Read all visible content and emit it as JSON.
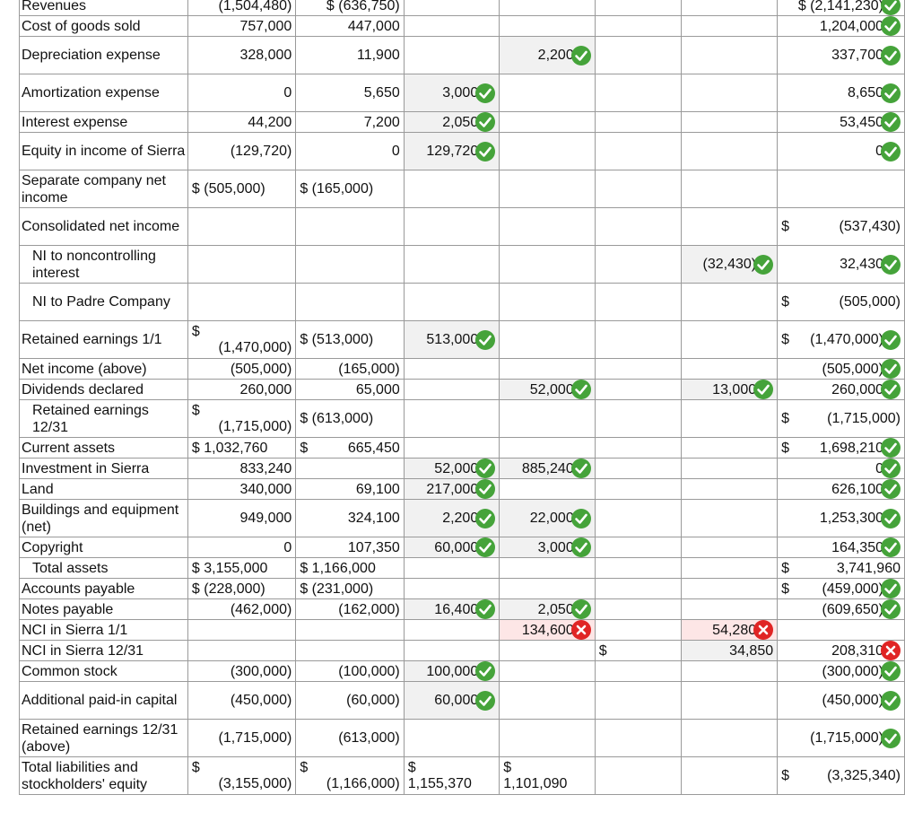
{
  "col_widths": [
    200,
    125,
    125,
    110,
    110,
    110,
    110,
    145
  ],
  "rows": [
    {
      "h": "h1",
      "label": "Revenues",
      "cells": [
        {
          "c": 1,
          "v": "(1,504,480)"
        },
        {
          "c": 2,
          "v": "$ (636,750)"
        },
        {
          "c": 7,
          "v": "$ (2,141,230)",
          "icon": "check"
        }
      ]
    },
    {
      "h": "h1",
      "label": "Cost of goods sold",
      "cells": [
        {
          "c": 1,
          "v": "757,000"
        },
        {
          "c": 2,
          "v": "447,000"
        },
        {
          "c": 7,
          "v": "1,204,000",
          "icon": "check"
        }
      ]
    },
    {
      "h": "h2",
      "label": "Depreciation expense",
      "cells": [
        {
          "c": 1,
          "v": "328,000"
        },
        {
          "c": 2,
          "v": "11,900"
        },
        {
          "c": 4,
          "v": "2,200",
          "icon": "check",
          "fill": true
        },
        {
          "c": 7,
          "v": "337,700",
          "icon": "check"
        }
      ]
    },
    {
      "h": "h2",
      "label": "Amortization expense",
      "cells": [
        {
          "c": 1,
          "v": "0"
        },
        {
          "c": 2,
          "v": "5,650"
        },
        {
          "c": 3,
          "v": "3,000",
          "icon": "check",
          "fill": true
        },
        {
          "c": 7,
          "v": "8,650",
          "icon": "check"
        }
      ]
    },
    {
      "h": "h1",
      "label": "Interest expense",
      "cells": [
        {
          "c": 1,
          "v": "44,200"
        },
        {
          "c": 2,
          "v": "7,200"
        },
        {
          "c": 3,
          "v": "2,050",
          "icon": "check",
          "fill": true
        },
        {
          "c": 7,
          "v": "53,450",
          "icon": "check"
        }
      ]
    },
    {
      "h": "h2",
      "label": "Equity in income of Sierra",
      "cells": [
        {
          "c": 1,
          "v": "(129,720)"
        },
        {
          "c": 2,
          "v": "0"
        },
        {
          "c": 3,
          "v": "129,720",
          "icon": "check",
          "fill": true
        },
        {
          "c": 7,
          "v": "0",
          "icon": "check"
        }
      ]
    },
    {
      "h": "h2",
      "label": "Separate company net income",
      "cells": [
        {
          "c": 1,
          "v": "$ (505,000)",
          "align": "left"
        },
        {
          "c": 2,
          "v": "$ (165,000)",
          "align": "left"
        }
      ]
    },
    {
      "h": "h2",
      "label": "Consolidated net income",
      "cells": [
        {
          "c": 7,
          "split": [
            "$",
            "(537,430)"
          ]
        }
      ]
    },
    {
      "h": "h2",
      "label": "NI to noncontrolling interest",
      "indent": true,
      "cells": [
        {
          "c": 6,
          "v": "(32,430)",
          "icon": "check",
          "fill": true
        },
        {
          "c": 7,
          "v": "32,430",
          "icon": "check"
        }
      ]
    },
    {
      "h": "h2",
      "label": "NI to Padre Company",
      "indent": true,
      "cells": [
        {
          "c": 7,
          "split": [
            "$",
            "(505,000)"
          ]
        }
      ]
    },
    {
      "h": "h2",
      "label": "Retained earnings 1/1",
      "cells": [
        {
          "c": 1,
          "stack": [
            "$",
            "(1,470,000)"
          ]
        },
        {
          "c": 2,
          "v": "$ (513,000)",
          "align": "left"
        },
        {
          "c": 3,
          "v": "513,000",
          "icon": "check",
          "fill": true
        },
        {
          "c": 7,
          "split": [
            "$",
            "(1,470,000)"
          ],
          "icon": "check"
        }
      ]
    },
    {
      "h": "h1",
      "label": "Net income (above)",
      "cells": [
        {
          "c": 1,
          "v": "(505,000)"
        },
        {
          "c": 2,
          "v": "(165,000)"
        },
        {
          "c": 7,
          "v": "(505,000)",
          "icon": "check"
        }
      ]
    },
    {
      "h": "h1",
      "label": "Dividends declared",
      "cells": [
        {
          "c": 1,
          "v": "260,000"
        },
        {
          "c": 2,
          "v": "65,000"
        },
        {
          "c": 4,
          "v": "52,000",
          "icon": "check",
          "fill": true
        },
        {
          "c": 6,
          "v": "13,000",
          "icon": "check",
          "fill": true
        },
        {
          "c": 7,
          "v": "260,000",
          "icon": "check"
        }
      ]
    },
    {
      "h": "h2",
      "label": "Retained earnings 12/31",
      "indent": true,
      "cells": [
        {
          "c": 1,
          "stack": [
            "$",
            "(1,715,000)"
          ]
        },
        {
          "c": 2,
          "v": "$ (613,000)",
          "align": "left"
        },
        {
          "c": 7,
          "split": [
            "$",
            "(1,715,000)"
          ]
        }
      ]
    },
    {
      "h": "h1",
      "label": "Current assets",
      "cells": [
        {
          "c": 1,
          "v": "$ 1,032,760",
          "align": "left"
        },
        {
          "c": 2,
          "split": [
            "$",
            "665,450"
          ]
        },
        {
          "c": 7,
          "split": [
            "$",
            "1,698,210"
          ],
          "icon": "check"
        }
      ]
    },
    {
      "h": "h1",
      "label": "Investment in Sierra",
      "cells": [
        {
          "c": 1,
          "v": "833,240"
        },
        {
          "c": 3,
          "v": "52,000",
          "icon": "check",
          "fill": true
        },
        {
          "c": 4,
          "v": "885,240",
          "icon": "check",
          "fill": true
        },
        {
          "c": 7,
          "v": "0",
          "icon": "check"
        }
      ]
    },
    {
      "h": "h1",
      "label": "Land",
      "cells": [
        {
          "c": 1,
          "v": "340,000"
        },
        {
          "c": 2,
          "v": "69,100"
        },
        {
          "c": 3,
          "v": "217,000",
          "icon": "check",
          "fill": true
        },
        {
          "c": 7,
          "v": "626,100",
          "icon": "check"
        }
      ]
    },
    {
      "h": "h2",
      "label": "Buildings and equipment (net)",
      "cells": [
        {
          "c": 1,
          "v": "949,000"
        },
        {
          "c": 2,
          "v": "324,100"
        },
        {
          "c": 3,
          "v": "2,200",
          "icon": "check",
          "fill": true
        },
        {
          "c": 4,
          "v": "22,000",
          "icon": "check",
          "fill": true
        },
        {
          "c": 7,
          "v": "1,253,300",
          "icon": "check"
        }
      ]
    },
    {
      "h": "h1",
      "label": "Copyright",
      "cells": [
        {
          "c": 1,
          "v": "0"
        },
        {
          "c": 2,
          "v": "107,350"
        },
        {
          "c": 3,
          "v": "60,000",
          "icon": "check",
          "fill": true
        },
        {
          "c": 4,
          "v": "3,000",
          "icon": "check",
          "fill": true
        },
        {
          "c": 7,
          "v": "164,350",
          "icon": "check"
        }
      ]
    },
    {
      "h": "h1",
      "label": "Total assets",
      "indent": true,
      "cells": [
        {
          "c": 1,
          "v": "$ 3,155,000",
          "align": "left"
        },
        {
          "c": 2,
          "v": "$ 1,166,000",
          "align": "left"
        },
        {
          "c": 7,
          "split": [
            "$",
            "3,741,960"
          ]
        }
      ]
    },
    {
      "h": "h1",
      "label": "Accounts payable",
      "cells": [
        {
          "c": 1,
          "v": "$ (228,000)",
          "align": "left"
        },
        {
          "c": 2,
          "v": "$ (231,000)",
          "align": "left"
        },
        {
          "c": 7,
          "split": [
            "$",
            "(459,000)"
          ],
          "icon": "check"
        }
      ]
    },
    {
      "h": "h1",
      "label": "Notes payable",
      "cells": [
        {
          "c": 1,
          "v": "(462,000)"
        },
        {
          "c": 2,
          "v": "(162,000)"
        },
        {
          "c": 3,
          "v": "16,400",
          "icon": "check",
          "fill": true
        },
        {
          "c": 4,
          "v": "2,050",
          "icon": "check",
          "fill": true
        },
        {
          "c": 7,
          "v": "(609,650)",
          "icon": "check"
        }
      ]
    },
    {
      "h": "h1",
      "label": "NCI in Sierra 1/1",
      "cells": [
        {
          "c": 4,
          "v": "134,600",
          "icon": "cross",
          "err": true
        },
        {
          "c": 6,
          "v": "54,280",
          "icon": "cross",
          "err": true
        }
      ]
    },
    {
      "h": "h1",
      "label": "NCI in Sierra 12/31",
      "cells": [
        {
          "c": 5,
          "v": "$",
          "align": "left"
        },
        {
          "c": 6,
          "v": "34,850",
          "fill": true
        },
        {
          "c": 7,
          "v": "208,310",
          "icon": "cross"
        }
      ]
    },
    {
      "h": "h1",
      "label": "Common stock",
      "cells": [
        {
          "c": 1,
          "v": "(300,000)"
        },
        {
          "c": 2,
          "v": "(100,000)"
        },
        {
          "c": 3,
          "v": "100,000",
          "icon": "check",
          "fill": true
        },
        {
          "c": 7,
          "v": "(300,000)",
          "icon": "check"
        }
      ]
    },
    {
      "h": "h2",
      "label": "Additional paid-in capital",
      "cells": [
        {
          "c": 1,
          "v": "(450,000)"
        },
        {
          "c": 2,
          "v": "(60,000)"
        },
        {
          "c": 3,
          "v": "60,000",
          "icon": "check",
          "fill": true
        },
        {
          "c": 7,
          "v": "(450,000)",
          "icon": "check"
        }
      ]
    },
    {
      "h": "h2",
      "label": "Retained earnings 12/31 (above)",
      "cells": [
        {
          "c": 1,
          "v": "(1,715,000)"
        },
        {
          "c": 2,
          "v": "(613,000)"
        },
        {
          "c": 7,
          "v": "(1,715,000)",
          "icon": "check"
        }
      ]
    },
    {
      "h": "h2",
      "label": "Total liabilities and stockholders' equity",
      "cells": [
        {
          "c": 1,
          "stack": [
            "$",
            "(3,155,000)"
          ]
        },
        {
          "c": 2,
          "stack": [
            "$",
            "(1,166,000)"
          ]
        },
        {
          "c": 3,
          "stack": [
            "$",
            "1,155,370"
          ],
          "left": true
        },
        {
          "c": 4,
          "stack": [
            "$",
            "1,101,090"
          ],
          "left": true
        },
        {
          "c": 7,
          "split": [
            "$",
            "(3,325,340)"
          ]
        }
      ]
    }
  ],
  "colors": {
    "check": "#45a33a",
    "cross": "#e02424",
    "grid": "#9a9a9a"
  }
}
